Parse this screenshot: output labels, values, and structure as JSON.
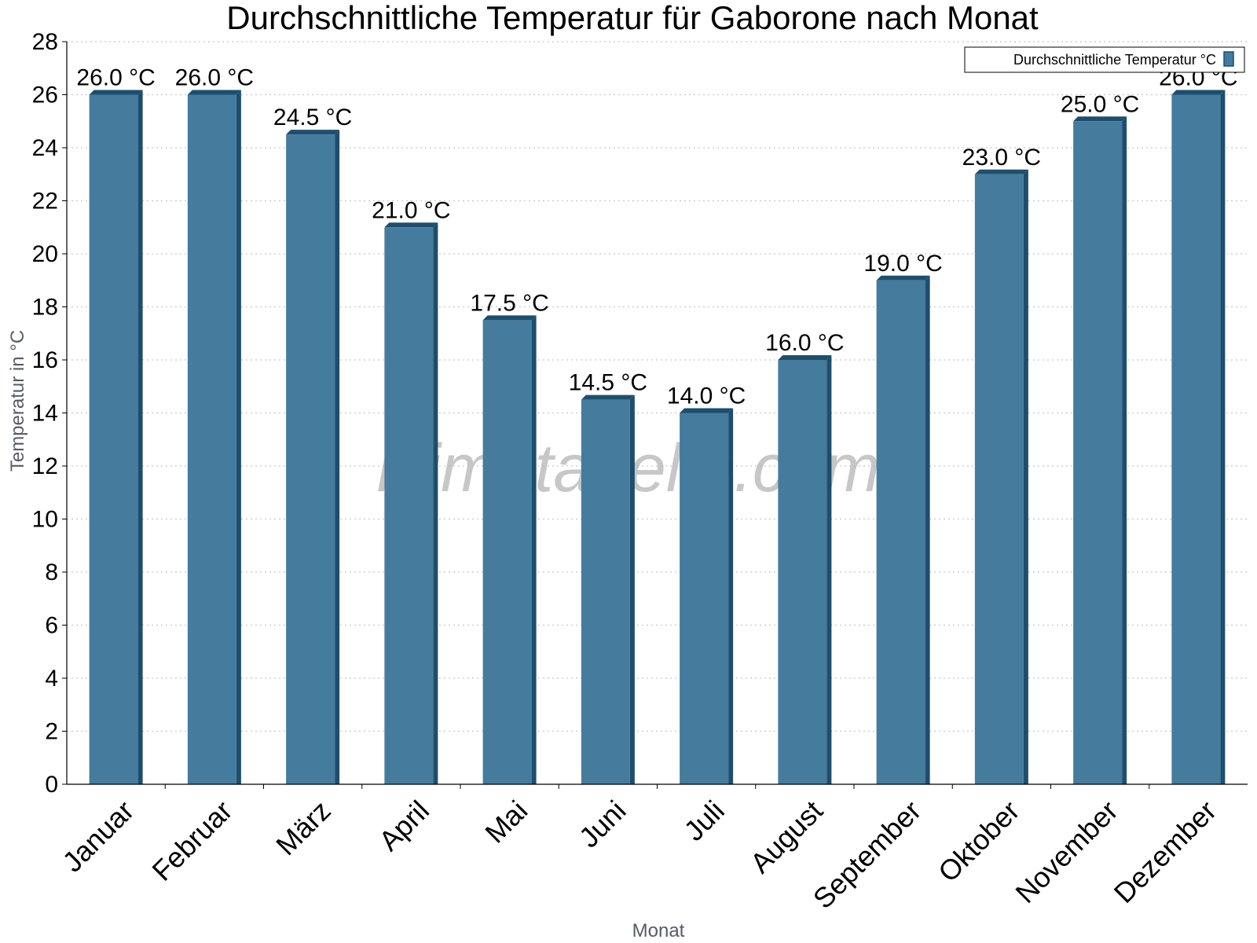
{
  "chart_data": {
    "type": "bar",
    "title": "Durchschnittliche Temperatur für Gaborone nach Monat",
    "xlabel": "Monat",
    "ylabel": "Temperatur in °C",
    "ylim": [
      0,
      28
    ],
    "yticks": [
      0,
      2,
      4,
      6,
      8,
      10,
      12,
      14,
      16,
      18,
      20,
      22,
      24,
      26,
      28
    ],
    "categories": [
      "Januar",
      "Februar",
      "März",
      "April",
      "Mai",
      "Juni",
      "Juli",
      "August",
      "September",
      "Oktober",
      "November",
      "Dezember"
    ],
    "series": [
      {
        "name": "Durchschnittliche Temperatur °C",
        "values": [
          26.0,
          26.0,
          24.5,
          21.0,
          17.5,
          14.5,
          14.0,
          16.0,
          19.0,
          23.0,
          25.0,
          26.0
        ],
        "labels": [
          "26.0 °C",
          "26.0 °C",
          "24.5 °C",
          "21.0 °C",
          "17.5 °C",
          "14.5 °C",
          "14.0 °C",
          "16.0 °C",
          "19.0 °C",
          "23.0 °C",
          "25.0 °C",
          "26.0 °C"
        ],
        "color": "#457b9d",
        "edge_color": "#1d4e6e"
      }
    ],
    "grid": "horizontal dotted",
    "legend_position": "top-right",
    "watermark": "klimatabelle.com"
  }
}
